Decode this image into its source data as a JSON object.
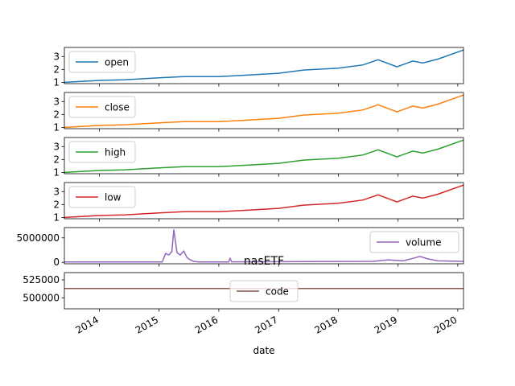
{
  "chart_data": {
    "type": "line",
    "figure_title": "nasETF",
    "xlabel": "date",
    "x_ticks": [
      "2014",
      "2015",
      "2016",
      "2017",
      "2018",
      "2019",
      "2020"
    ],
    "xlim": [
      "2013-06-01",
      "2020-02-05"
    ],
    "grid": false,
    "panels": [
      {
        "name": "open",
        "color": "#1f77b4",
        "ylim": [
          0.9,
          3.7
        ],
        "y_ticks": [
          "1",
          "2",
          "3"
        ],
        "y_tick_values": [
          1,
          2,
          3
        ],
        "legend": "upper-left",
        "x": [
          "2013-06-01",
          "2014-01-01",
          "2014-06-01",
          "2015-01-01",
          "2015-06-01",
          "2016-01-01",
          "2016-06-01",
          "2017-01-01",
          "2017-06-01",
          "2018-01-01",
          "2018-06-01",
          "2018-09-01",
          "2018-12-25",
          "2019-04-01",
          "2019-06-01",
          "2019-09-01",
          "2020-02-05"
        ],
        "values": [
          1.0,
          1.15,
          1.2,
          1.35,
          1.45,
          1.45,
          1.55,
          1.7,
          1.95,
          2.1,
          2.35,
          2.75,
          2.2,
          2.65,
          2.5,
          2.8,
          3.5
        ]
      },
      {
        "name": "close",
        "color": "#ff7f0e",
        "ylim": [
          0.9,
          3.7
        ],
        "y_ticks": [
          "1",
          "2",
          "3"
        ],
        "y_tick_values": [
          1,
          2,
          3
        ],
        "legend": "upper-left",
        "x": [
          "2013-06-01",
          "2014-01-01",
          "2014-06-01",
          "2015-01-01",
          "2015-06-01",
          "2016-01-01",
          "2016-06-01",
          "2017-01-01",
          "2017-06-01",
          "2018-01-01",
          "2018-06-01",
          "2018-09-01",
          "2018-12-25",
          "2019-04-01",
          "2019-06-01",
          "2019-09-01",
          "2020-02-05"
        ],
        "values": [
          1.0,
          1.15,
          1.2,
          1.35,
          1.45,
          1.45,
          1.55,
          1.7,
          1.95,
          2.1,
          2.35,
          2.75,
          2.2,
          2.65,
          2.5,
          2.8,
          3.5
        ]
      },
      {
        "name": "high",
        "color": "#2ca02c",
        "ylim": [
          0.9,
          3.7
        ],
        "y_ticks": [
          "1",
          "2",
          "3"
        ],
        "y_tick_values": [
          1,
          2,
          3
        ],
        "legend": "upper-left",
        "x": [
          "2013-06-01",
          "2014-01-01",
          "2014-06-01",
          "2015-01-01",
          "2015-06-01",
          "2016-01-01",
          "2016-06-01",
          "2017-01-01",
          "2017-06-01",
          "2018-01-01",
          "2018-06-01",
          "2018-09-01",
          "2018-12-25",
          "2019-04-01",
          "2019-06-01",
          "2019-09-01",
          "2020-02-05"
        ],
        "values": [
          1.0,
          1.15,
          1.2,
          1.35,
          1.45,
          1.45,
          1.55,
          1.7,
          1.95,
          2.1,
          2.35,
          2.75,
          2.2,
          2.65,
          2.5,
          2.8,
          3.5
        ]
      },
      {
        "name": "low",
        "color": "#d62728",
        "ylim": [
          0.9,
          3.7
        ],
        "y_ticks": [
          "1",
          "2",
          "3"
        ],
        "y_tick_values": [
          1,
          2,
          3
        ],
        "legend": "upper-left",
        "x": [
          "2013-06-01",
          "2014-01-01",
          "2014-06-01",
          "2015-01-01",
          "2015-06-01",
          "2016-01-01",
          "2016-06-01",
          "2017-01-01",
          "2017-06-01",
          "2018-01-01",
          "2018-06-01",
          "2018-09-01",
          "2018-12-25",
          "2019-04-01",
          "2019-06-01",
          "2019-09-01",
          "2020-02-05"
        ],
        "values": [
          1.0,
          1.15,
          1.2,
          1.35,
          1.45,
          1.45,
          1.55,
          1.7,
          1.95,
          2.1,
          2.35,
          2.75,
          2.2,
          2.65,
          2.5,
          2.8,
          3.5
        ]
      },
      {
        "name": "volume",
        "color": "#9467bd",
        "ylim": [
          -300000,
          7100000
        ],
        "y_ticks": [
          "0",
          "5000000"
        ],
        "y_tick_values": [
          0,
          5000000
        ],
        "legend": "upper-right",
        "x": [
          "2013-06-01",
          "2015-01-20",
          "2015-02-10",
          "2015-03-01",
          "2015-03-20",
          "2015-04-01",
          "2015-04-20",
          "2015-05-10",
          "2015-06-01",
          "2015-06-20",
          "2015-07-10",
          "2015-08-01",
          "2015-09-01",
          "2016-03-01",
          "2016-03-10",
          "2016-03-20",
          "2018-08-01",
          "2018-11-01",
          "2019-02-01",
          "2019-04-01",
          "2019-05-15",
          "2019-07-01",
          "2019-09-01",
          "2020-02-05"
        ],
        "values": [
          60000,
          60000,
          1800000,
          1500000,
          2200000,
          6700000,
          2000000,
          1500000,
          2300000,
          1000000,
          500000,
          200000,
          80000,
          60000,
          800000,
          100000,
          200000,
          500000,
          300000,
          800000,
          1200000,
          700000,
          300000,
          200000
        ]
      },
      {
        "name": "code",
        "color": "#8c564b",
        "ylim": [
          485000,
          535000
        ],
        "y_ticks": [
          "500000",
          "525000"
        ],
        "y_tick_values": [
          500000,
          525000
        ],
        "legend": "center",
        "x": [
          "2013-06-01",
          "2020-02-05"
        ],
        "values": [
          513100,
          513100
        ]
      }
    ]
  }
}
